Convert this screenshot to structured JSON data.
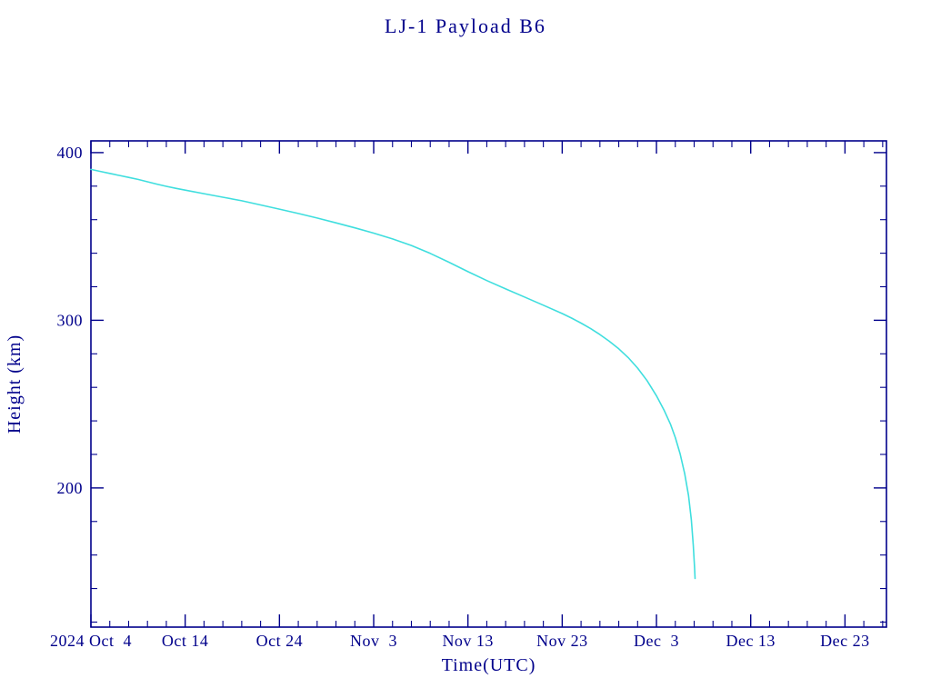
{
  "page": {
    "background": "#FFFFFF"
  },
  "chart_data": {
    "type": "line",
    "title": "LJ-1 Payload B6",
    "xlabel": "Time(UTC)",
    "ylabel": "Height (km)",
    "year_label": "2024",
    "x_axis_reference": "days since 2024 Oct 4",
    "xlim": [
      0,
      84.4
    ],
    "ylim": [
      117,
      407
    ],
    "grid": false,
    "legend": "none",
    "y_ticks": [
      200,
      300,
      400
    ],
    "y_minor_step": 20,
    "x_minor_step": 2,
    "x_ticks": [
      {
        "day": 0,
        "label": "Oct  4",
        "anchor": "start"
      },
      {
        "day": 10,
        "label": "Oct 14"
      },
      {
        "day": 20,
        "label": "Oct 24"
      },
      {
        "day": 30,
        "label": "Nov  3"
      },
      {
        "day": 40,
        "label": "Nov 13"
      },
      {
        "day": 50,
        "label": "Nov 23"
      },
      {
        "day": 60,
        "label": "Dec  3"
      },
      {
        "day": 70,
        "label": "Dec 13"
      },
      {
        "day": 80,
        "label": "Dec 23"
      }
    ],
    "colors": {
      "axis": "#00008B",
      "text": "#00008B",
      "background": "#FFFFFF"
    },
    "series": [
      {
        "name": "LJ-1 Payload B6 height",
        "color": "#3FDEDE",
        "points": [
          [
            0,
            390
          ],
          [
            1,
            388.8
          ],
          [
            2,
            387.6
          ],
          [
            3,
            386.4
          ],
          [
            4,
            385.2
          ],
          [
            5,
            384.0
          ],
          [
            6,
            382.6
          ],
          [
            7,
            381.2
          ],
          [
            8,
            379.9
          ],
          [
            9,
            378.7
          ],
          [
            10,
            377.6
          ],
          [
            12,
            375.5
          ],
          [
            14,
            373.4
          ],
          [
            16,
            371.3
          ],
          [
            18,
            368.8
          ],
          [
            20,
            366.3
          ],
          [
            22,
            363.7
          ],
          [
            24,
            361.0
          ],
          [
            26,
            358.1
          ],
          [
            28,
            355.1
          ],
          [
            30,
            352.0
          ],
          [
            32,
            348.5
          ],
          [
            34,
            344.6
          ],
          [
            36,
            339.9
          ],
          [
            38,
            334.6
          ],
          [
            40,
            329.0
          ],
          [
            42,
            323.7
          ],
          [
            44,
            318.7
          ],
          [
            46,
            313.9
          ],
          [
            48,
            309.0
          ],
          [
            50,
            304.0
          ],
          [
            51,
            301.3
          ],
          [
            52,
            298.3
          ],
          [
            53,
            295.1
          ],
          [
            54,
            291.5
          ],
          [
            55,
            287.5
          ],
          [
            56,
            283.0
          ],
          [
            57,
            277.8
          ],
          [
            58,
            271.5
          ],
          [
            59,
            264.0
          ],
          [
            60,
            255.0
          ],
          [
            60.8,
            246.5
          ],
          [
            61.5,
            237.8
          ],
          [
            62,
            230.0
          ],
          [
            62.5,
            220.5
          ],
          [
            63,
            208.5
          ],
          [
            63.4,
            195.5
          ],
          [
            63.7,
            181.0
          ],
          [
            63.9,
            166.0
          ],
          [
            64.05,
            152.0
          ],
          [
            64.1,
            146.0
          ]
        ]
      }
    ]
  }
}
